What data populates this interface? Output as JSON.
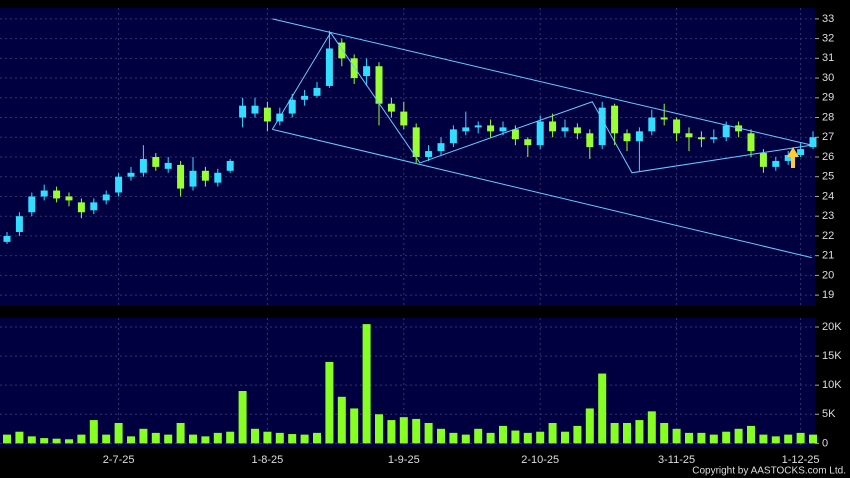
{
  "chart_data": {
    "type": "candlestick",
    "categories": [
      null,
      null,
      null,
      null,
      null,
      null,
      null,
      null,
      null,
      "2-7-25",
      null,
      null,
      null,
      null,
      null,
      null,
      null,
      null,
      null,
      null,
      null,
      "1-8-25",
      null,
      null,
      null,
      null,
      null,
      null,
      null,
      null,
      null,
      null,
      "1-9-25",
      null,
      null,
      null,
      null,
      null,
      null,
      null,
      null,
      null,
      null,
      "2-10-25",
      null,
      null,
      null,
      null,
      null,
      null,
      null,
      null,
      null,
      null,
      "3-11-25",
      null,
      null,
      null,
      null,
      null,
      null,
      null,
      null,
      null,
      "1-12-25",
      null
    ],
    "open": [
      21.7,
      22.2,
      23.2,
      24.0,
      24.3,
      24.0,
      23.7,
      23.3,
      23.8,
      24.2,
      25.0,
      25.2,
      26.0,
      25.4,
      25.6,
      24.5,
      25.3,
      24.7,
      25.3,
      28.0,
      28.2,
      28.5,
      27.8,
      28.2,
      28.9,
      29.1,
      29.6,
      31.8,
      31.0,
      30.1,
      30.6,
      28.7,
      28.3,
      27.5,
      26.0,
      26.3,
      26.7,
      27.3,
      27.5,
      27.6,
      27.3,
      27.4,
      26.9,
      26.6,
      27.8,
      27.3,
      27.5,
      27.2,
      26.6,
      28.6,
      27.2,
      26.8,
      27.3,
      28.0,
      27.9,
      27.2,
      27.0,
      26.9,
      27.0,
      27.6,
      27.2,
      26.2,
      25.5,
      25.8,
      26.1,
      26.5
    ],
    "high": [
      22.2,
      23.2,
      24.2,
      24.6,
      24.5,
      24.2,
      23.9,
      23.9,
      24.3,
      25.2,
      25.5,
      26.6,
      26.2,
      26.0,
      25.8,
      26.0,
      25.5,
      25.4,
      25.9,
      29.0,
      29.0,
      28.8,
      28.5,
      29.2,
      29.4,
      29.8,
      32.4,
      32.0,
      31.2,
      31.0,
      30.8,
      29.0,
      28.8,
      27.7,
      26.6,
      27.0,
      27.6,
      28.3,
      27.8,
      27.9,
      27.8,
      27.6,
      27.0,
      28.1,
      28.2,
      27.9,
      27.7,
      27.4,
      28.8,
      28.7,
      27.4,
      27.5,
      28.4,
      28.7,
      28.0,
      27.5,
      27.3,
      27.4,
      27.8,
      27.8,
      27.4,
      26.4,
      26.0,
      26.3,
      26.7,
      27.3
    ],
    "low": [
      21.6,
      22.0,
      23.0,
      23.8,
      23.7,
      23.5,
      22.9,
      23.1,
      23.6,
      24.0,
      24.8,
      25.0,
      25.3,
      25.2,
      24.0,
      24.3,
      24.5,
      24.5,
      25.2,
      27.5,
      28.0,
      27.3,
      27.6,
      28.0,
      28.6,
      29.0,
      29.5,
      30.6,
      29.7,
      29.6,
      27.6,
      28.0,
      27.4,
      25.7,
      25.8,
      26.1,
      26.5,
      27.1,
      27.2,
      27.0,
      27.1,
      26.6,
      26.0,
      26.4,
      27.0,
      27.0,
      26.9,
      25.9,
      26.4,
      26.6,
      26.3,
      25.3,
      27.1,
      27.6,
      26.8,
      26.3,
      26.5,
      26.7,
      26.8,
      27.0,
      26.0,
      25.2,
      25.3,
      25.6,
      26.0,
      26.4
    ],
    "close": [
      22.0,
      23.0,
      24.0,
      24.3,
      23.9,
      23.8,
      23.2,
      23.7,
      24.1,
      25.0,
      25.2,
      25.9,
      25.5,
      25.7,
      24.4,
      25.3,
      24.8,
      25.2,
      25.8,
      28.6,
      28.6,
      27.8,
      28.2,
      28.9,
      29.1,
      29.5,
      31.5,
      31.0,
      30.0,
      30.6,
      28.7,
      28.3,
      27.6,
      26.0,
      26.3,
      26.7,
      27.4,
      27.5,
      27.6,
      27.3,
      27.5,
      26.9,
      26.6,
      27.8,
      27.3,
      27.5,
      27.2,
      26.5,
      28.5,
      27.2,
      26.8,
      27.3,
      28.0,
      27.9,
      27.2,
      27.0,
      26.9,
      27.0,
      27.6,
      27.3,
      26.3,
      25.5,
      25.8,
      26.1,
      26.4,
      27.0
    ],
    "up_color": "#33ddff",
    "down_color": "#99ff33",
    "ylim": [
      18.5,
      33.55
    ],
    "yticks": [
      19,
      20,
      21,
      22,
      23,
      24,
      25,
      26,
      27,
      28,
      29,
      30,
      31,
      32,
      33
    ],
    "grid": true,
    "trendline_color": "#66ccff",
    "trendlines": [
      {
        "points": [
          [
            21.4,
            33
          ],
          [
            64.9,
            26.6
          ]
        ]
      },
      {
        "points": [
          [
            21.4,
            27.4
          ],
          [
            64.9,
            20.9
          ]
        ]
      },
      {
        "points": [
          [
            21.4,
            27.4
          ],
          [
            26.1,
            32.3
          ],
          [
            33.3,
            25.7
          ],
          [
            47.2,
            28.8
          ],
          [
            50.4,
            25.2
          ],
          [
            64.9,
            26.6
          ]
        ]
      }
    ],
    "volume": {
      "values": [
        1500,
        2000,
        1200,
        900,
        800,
        700,
        1500,
        4000,
        1500,
        3500,
        1200,
        2500,
        1800,
        1500,
        3500,
        1500,
        1200,
        1800,
        2000,
        9000,
        2500,
        2000,
        1800,
        1600,
        1500,
        1800,
        14000,
        8000,
        6000,
        20500,
        5000,
        4000,
        4500,
        4200,
        3500,
        2500,
        1800,
        1500,
        2500,
        1800,
        3000,
        2200,
        1800,
        2000,
        3500,
        2000,
        3000,
        6000,
        12000,
        3500,
        3500,
        4000,
        5500,
        3500,
        2500,
        1800,
        1800,
        1500,
        2000,
        2500,
        3000,
        1500,
        1200,
        1500,
        1800,
        1500
      ],
      "color": "#88ff22",
      "ylim": [
        -800,
        21550
      ],
      "yticks": [
        0,
        {
          "value": 5000,
          "label": "5K"
        },
        {
          "value": 10000,
          "label": "10K"
        },
        {
          "value": 15000,
          "label": "15K"
        },
        {
          "value": 20000,
          "label": "20K"
        }
      ]
    }
  },
  "footer": {
    "copyright": "Copyright by AASTOCKS.com Ltd."
  }
}
